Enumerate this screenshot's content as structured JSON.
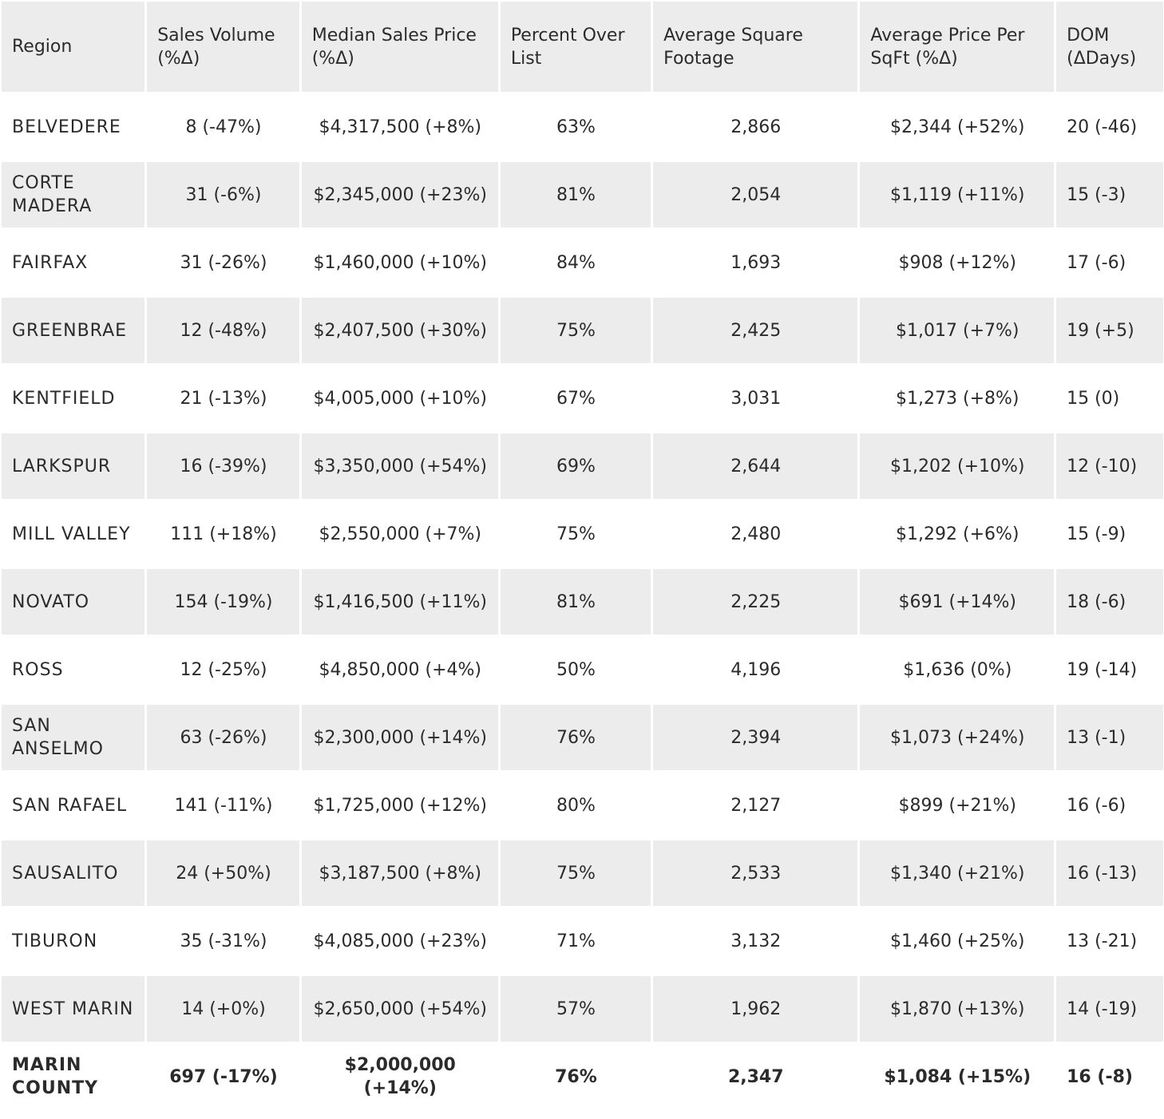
{
  "headers": {
    "region": "Region",
    "volume": "Sales Volume (%Δ)",
    "median": "Median Sales Price (%Δ)",
    "over_list": "Percent Over List",
    "sqft": "Average Square Footage",
    "ppsf": "Average Price Per SqFt (%Δ)",
    "dom": "DOM (ΔDays)"
  },
  "rows": [
    {
      "region": "BELVEDERE",
      "volume": "8 (-47%)",
      "median": "$4,317,500 (+8%)",
      "over_list": "63%",
      "sqft": "2,866",
      "ppsf": "$2,344 (+52%)",
      "dom": "20 (-46)"
    },
    {
      "region": "CORTE MADERA",
      "volume": "31 (-6%)",
      "median": "$2,345,000 (+23%)",
      "over_list": "81%",
      "sqft": "2,054",
      "ppsf": "$1,119 (+11%)",
      "dom": "15 (-3)"
    },
    {
      "region": "FAIRFAX",
      "volume": "31 (-26%)",
      "median": "$1,460,000 (+10%)",
      "over_list": "84%",
      "sqft": "1,693",
      "ppsf": "$908 (+12%)",
      "dom": "17 (-6)"
    },
    {
      "region": "GREENBRAE",
      "volume": "12 (-48%)",
      "median": "$2,407,500 (+30%)",
      "over_list": "75%",
      "sqft": "2,425",
      "ppsf": "$1,017 (+7%)",
      "dom": "19 (+5)"
    },
    {
      "region": "KENTFIELD",
      "volume": "21 (-13%)",
      "median": "$4,005,000 (+10%)",
      "over_list": "67%",
      "sqft": "3,031",
      "ppsf": "$1,273 (+8%)",
      "dom": "15 (0)"
    },
    {
      "region": "LARKSPUR",
      "volume": "16 (-39%)",
      "median": "$3,350,000 (+54%)",
      "over_list": "69%",
      "sqft": "2,644",
      "ppsf": "$1,202 (+10%)",
      "dom": "12 (-10)"
    },
    {
      "region": "MILL VALLEY",
      "volume": "111 (+18%)",
      "median": "$2,550,000 (+7%)",
      "over_list": "75%",
      "sqft": "2,480",
      "ppsf": "$1,292 (+6%)",
      "dom": "15 (-9)"
    },
    {
      "region": "NOVATO",
      "volume": "154 (-19%)",
      "median": "$1,416,500 (+11%)",
      "over_list": "81%",
      "sqft": "2,225",
      "ppsf": "$691 (+14%)",
      "dom": "18 (-6)"
    },
    {
      "region": "ROSS",
      "volume": "12 (-25%)",
      "median": "$4,850,000 (+4%)",
      "over_list": "50%",
      "sqft": "4,196",
      "ppsf": "$1,636 (0%)",
      "dom": "19 (-14)"
    },
    {
      "region": "SAN ANSELMO",
      "volume": "63 (-26%)",
      "median": "$2,300,000 (+14%)",
      "over_list": "76%",
      "sqft": "2,394",
      "ppsf": "$1,073 (+24%)",
      "dom": "13 (-1)"
    },
    {
      "region": "SAN RAFAEL",
      "volume": "141 (-11%)",
      "median": "$1,725,000 (+12%)",
      "over_list": "80%",
      "sqft": "2,127",
      "ppsf": "$899 (+21%)",
      "dom": "16 (-6)"
    },
    {
      "region": "SAUSALITO",
      "volume": "24 (+50%)",
      "median": "$3,187,500 (+8%)",
      "over_list": "75%",
      "sqft": "2,533",
      "ppsf": "$1,340 (+21%)",
      "dom": "16 (-13)"
    },
    {
      "region": "TIBURON",
      "volume": "35 (-31%)",
      "median": "$4,085,000 (+23%)",
      "over_list": "71%",
      "sqft": "3,132",
      "ppsf": "$1,460 (+25%)",
      "dom": "13 (-21)"
    },
    {
      "region": "WEST MARIN",
      "volume": "14 (+0%)",
      "median": "$2,650,000 (+54%)",
      "over_list": "57%",
      "sqft": "1,962",
      "ppsf": "$1,870 (+13%)",
      "dom": "14 (-19)"
    }
  ],
  "total": {
    "region": "MARIN COUNTY",
    "volume": "697 (-17%)",
    "median": "$2,000,000 (+14%)",
    "over_list": "76%",
    "sqft": "2,347",
    "ppsf": "$1,084 (+15%)",
    "dom": "16 (-8)"
  },
  "colors": {
    "row_shade": "#ececec",
    "text": "#2b2b2b",
    "background": "#ffffff"
  }
}
